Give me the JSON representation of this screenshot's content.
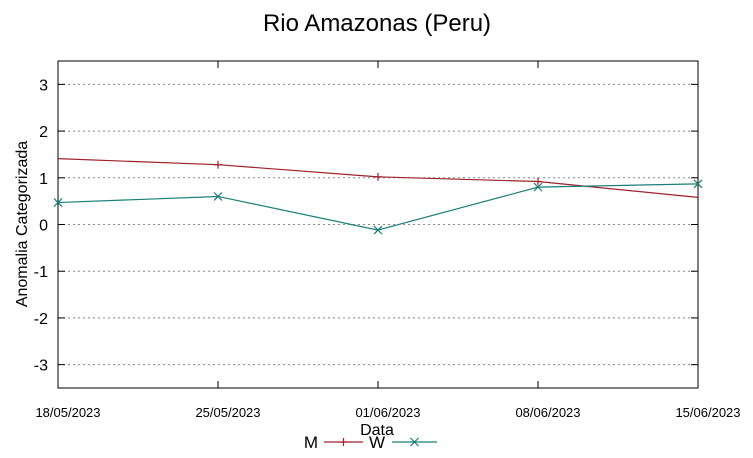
{
  "chart_data": {
    "type": "line",
    "title": "Rio Amazonas (Peru)",
    "xlabel": "Data",
    "ylabel": "Anomalia Categorizada",
    "categories": [
      "18/05/2023",
      "25/05/2023",
      "01/06/2023",
      "08/06/2023",
      "15/06/2023"
    ],
    "ylim": [
      -3.5,
      3.5
    ],
    "yticks": [
      -3,
      -2,
      -1,
      0,
      1,
      2,
      3
    ],
    "grid": true,
    "legend_position": "bottom-center",
    "series": [
      {
        "name": "M",
        "color": "#a0212a",
        "marker": "plus",
        "x": [
          0,
          1,
          2,
          3,
          4
        ],
        "values": [
          null,
          1.28,
          1.02,
          0.92,
          null
        ],
        "line_x": [
          0,
          1,
          2,
          3,
          4
        ],
        "line_values": [
          1.41,
          1.28,
          1.02,
          0.92,
          0.58
        ]
      },
      {
        "name": "W",
        "color": "#1a7f7a",
        "marker": "cross",
        "x": [
          0,
          1,
          2,
          3,
          4
        ],
        "values": [
          0.47,
          0.6,
          -0.12,
          0.8,
          0.87
        ],
        "line_x": [
          0,
          1,
          2,
          3,
          4
        ],
        "line_values": [
          0.47,
          0.6,
          -0.12,
          0.8,
          0.87
        ]
      }
    ]
  }
}
